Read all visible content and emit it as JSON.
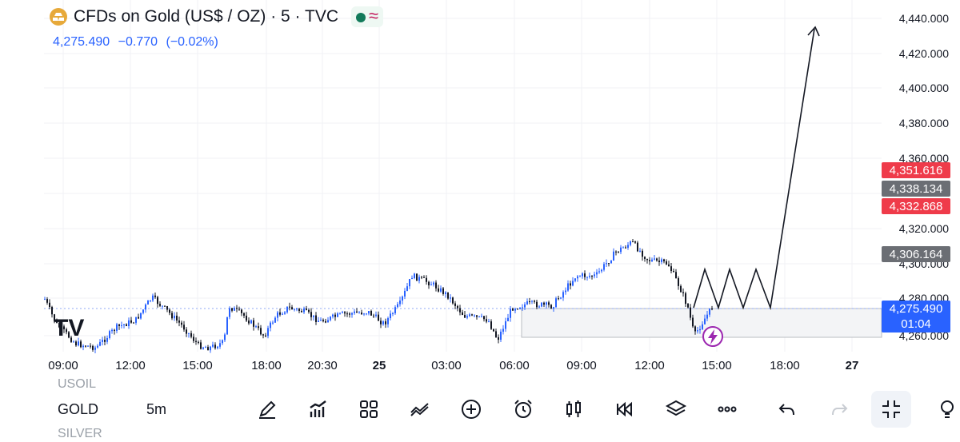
{
  "header": {
    "title": "CFDs on Gold (US$ / OZ) · 5 · TVC",
    "last_price": "4,275.490",
    "change": "−0.770",
    "change_pct": "(−0.02%)"
  },
  "y_axis": {
    "ticks": [
      "4,440.000",
      "4,420.000",
      "4,400.000",
      "4,380.000",
      "4,360.000",
      "4,320.000",
      "4,300.000",
      "4,280.000",
      "4,260.000"
    ]
  },
  "price_tags": {
    "tag1": "4,351.616",
    "tag2": "4,338.134",
    "tag3": "4,332.868",
    "tag4": "4,306.164",
    "current_price": "4,275.490",
    "countdown": "01:04"
  },
  "x_axis": {
    "ticks": [
      "09:00",
      "12:00",
      "15:00",
      "18:00",
      "20:30",
      "25",
      "03:00",
      "06:00",
      "09:00",
      "12:00",
      "15:00",
      "18:00",
      "27"
    ]
  },
  "watermark": "TV",
  "bottom_bar": {
    "above": "USOIL",
    "symbol": "GOLD",
    "below": "SILVER",
    "interval": "5m"
  },
  "colors": {
    "candle_up": "#2962ff",
    "candle_down": "#131722",
    "alert_purple": "#9c27b0",
    "red_tag": "#ef3b4a",
    "grey_tag": "#6b6e74"
  }
}
